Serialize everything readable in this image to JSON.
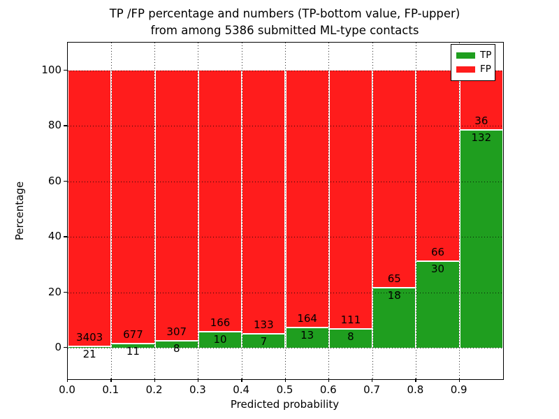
{
  "title_line1": "TP /FP percentage and numbers (TP-bottom value, FP-upper)",
  "title_line2": "from among 5386 submitted ML-type contacts",
  "total_contacts": 5386,
  "chart_data": {
    "type": "bar",
    "stacked": true,
    "normalized_to_percent": true,
    "title": "TP /FP percentage and numbers (TP-bottom value, FP-upper) from among 5386 submitted ML-type contacts",
    "xlabel": "Predicted probability",
    "ylabel": "Percentage",
    "bin_starts": [
      0.0,
      0.1,
      0.2,
      0.3,
      0.4,
      0.5,
      0.6,
      0.7,
      0.8,
      0.9
    ],
    "bin_width": 0.1,
    "series": [
      {
        "name": "TP",
        "color": "#1f9e1f",
        "counts": [
          21,
          11,
          8,
          10,
          7,
          13,
          8,
          18,
          30,
          132
        ]
      },
      {
        "name": "FP",
        "color": "#ff1c1c",
        "counts": [
          3403,
          677,
          307,
          166,
          133,
          164,
          111,
          65,
          66,
          36
        ]
      }
    ],
    "tp_percent": [
      0.61,
      1.6,
      2.54,
      5.68,
      5.0,
      7.34,
      6.72,
      21.69,
      31.25,
      78.57
    ],
    "fp_percent": [
      99.39,
      98.4,
      97.46,
      94.32,
      95.0,
      92.66,
      93.28,
      78.31,
      68.75,
      21.43
    ],
    "bar_annotations": "FP count printed above the TP/FP boundary, TP count printed below it",
    "x_tick_labels": [
      "0.0",
      "0.1",
      "0.2",
      "0.3",
      "0.4",
      "0.5",
      "0.6",
      "0.7",
      "0.8",
      "0.9"
    ],
    "y_ticks": [
      0,
      20,
      40,
      60,
      80,
      100
    ],
    "y_tick_labels": [
      "0",
      "20",
      "40",
      "60",
      "80",
      "100"
    ],
    "xlim": [
      0.0,
      1.0
    ],
    "ylim": [
      -12,
      110
    ],
    "grid": "dotted black gridlines drawn above bars",
    "legend": {
      "position": "upper right",
      "entries": [
        "TP",
        "FP"
      ]
    }
  },
  "legend": {
    "tp_label": "TP",
    "fp_label": "FP"
  },
  "colors": {
    "tp_green": "#1f9e1f",
    "fp_red": "#ff1c1c",
    "grid_black": "#000000",
    "background": "#ffffff"
  }
}
